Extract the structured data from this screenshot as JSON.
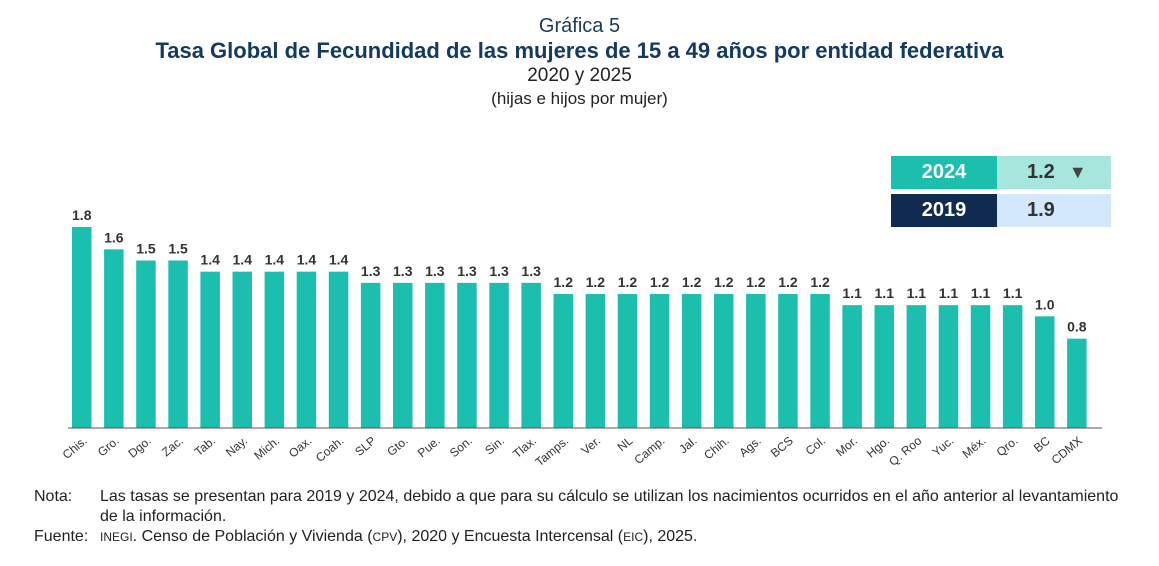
{
  "header": {
    "label": "Gráfica 5",
    "title": "Tasa Global de Fecundidad de las mujeres de 15 a 49 años por entidad federativa",
    "subtitle": "2020 y 2025",
    "unit": "(hijas e hijos por mujer)"
  },
  "summary": {
    "rows": [
      {
        "year": "2024",
        "value": "1.2",
        "arrow": "▼",
        "year_color": "#1cbfae",
        "value_color": "#a6e6dd"
      },
      {
        "year": "2019",
        "value": "1.9",
        "arrow": "",
        "year_color": "#0f2b4f",
        "value_color": "#d3e8fb"
      }
    ]
  },
  "chart_data": {
    "type": "bar",
    "categories": [
      "Chis.",
      "Gro.",
      "Dgo.",
      "Zac.",
      "Tab.",
      "Nay.",
      "Mich.",
      "Oax.",
      "Coah.",
      "SLP",
      "Gto.",
      "Pue.",
      "Son.",
      "Sin.",
      "Tlax.",
      "Tamps.",
      "Ver.",
      "NL",
      "Camp.",
      "Jal.",
      "Chih.",
      "Ags.",
      "BCS",
      "Col.",
      "Mor.",
      "Hgo.",
      "Q. Roo",
      "Yuc.",
      "Méx.",
      "Qro.",
      "BC",
      "CDMX"
    ],
    "values": [
      1.8,
      1.6,
      1.5,
      1.5,
      1.4,
      1.4,
      1.4,
      1.4,
      1.4,
      1.3,
      1.3,
      1.3,
      1.3,
      1.3,
      1.3,
      1.2,
      1.2,
      1.2,
      1.2,
      1.2,
      1.2,
      1.2,
      1.2,
      1.2,
      1.1,
      1.1,
      1.1,
      1.1,
      1.1,
      1.1,
      1.0,
      0.8
    ],
    "labels": [
      "1.8",
      "1.6",
      "1.5",
      "1.5",
      "1.4",
      "1.4",
      "1.4",
      "1.4",
      "1.4",
      "1.3",
      "1.3",
      "1.3",
      "1.3",
      "1.3",
      "1.3",
      "1.2",
      "1.2",
      "1.2",
      "1.2",
      "1.2",
      "1.2",
      "1.2",
      "1.2",
      "1.2",
      "1.1",
      "1.1",
      "1.1",
      "1.1",
      "1.1",
      "1.1",
      "1.0",
      "0.8"
    ],
    "ylim": [
      0,
      1.8
    ],
    "bar_color": "#1cbfae",
    "grid": false,
    "title": "",
    "xlabel": "",
    "ylabel": ""
  },
  "notes": {
    "nota_label": "Nota:",
    "nota_text": "Las tasas se presentan para 2019 y 2024, debido a que para su cálculo se utilizan los nacimientos ocurridos en el año anterior al levantamiento de la información.",
    "fuente_label": "Fuente:",
    "fuente_inegi": "INEGI",
    "fuente_t1": ". Censo de Población y Vivienda (",
    "fuente_cpv": "CPV",
    "fuente_t2": "), 2020 y Encuesta Intercensal (",
    "fuente_eic": "EIC",
    "fuente_t3": "), 2025."
  }
}
